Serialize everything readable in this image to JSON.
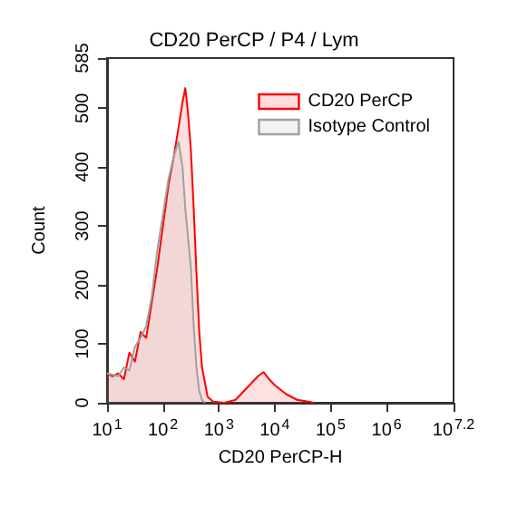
{
  "chart_data": {
    "type": "area",
    "title": "CD20 PerCP / P4 / Lym",
    "xlabel": "CD20 PerCP-H",
    "ylabel": "Count",
    "log": "x",
    "legend": "top right",
    "marker": "none",
    "grid": false,
    "xlim": [
      10,
      15848932
    ],
    "ylim": [
      0,
      585
    ],
    "xticks": [
      {
        "value": 10,
        "label": "10$^{1}$"
      },
      {
        "value": 100,
        "label": "10$^{2}$"
      },
      {
        "value": 1000,
        "label": "10$^{3}$"
      },
      {
        "value": 10000,
        "label": "10$^{4}$"
      },
      {
        "value": 100000,
        "label": "10$^{5}$"
      },
      {
        "value": 1000000,
        "label": "10$^{6}$"
      },
      {
        "value": 15848932,
        "label": "10$^{7.2}$"
      }
    ],
    "yticks": [
      0,
      100,
      200,
      300,
      400,
      500,
      585
    ],
    "series": [
      {
        "name": "CD20 PerCP",
        "color": "#ff0000",
        "x": [
          10,
          12.6,
          15.8,
          20,
          25.1,
          31.6,
          39.8,
          50.1,
          63.1,
          79.4,
          100,
          126,
          158,
          200,
          224,
          251,
          282,
          316,
          355,
          398,
          447,
          501,
          631,
          794,
          1259,
          1995,
          3162,
          5012,
          6310,
          7943,
          10000,
          15849,
          25119,
          39811,
          50119
        ],
        "values": [
          50,
          45,
          50,
          40,
          85,
          70,
          120,
          110,
          170,
          230,
          300,
          370,
          420,
          480,
          510,
          534,
          490,
          430,
          330,
          220,
          120,
          60,
          10,
          2,
          0,
          5,
          25,
          45,
          52,
          40,
          30,
          15,
          5,
          2,
          0
        ]
      },
      {
        "name": "Isotype Control",
        "color": "#a0a0a0",
        "x": [
          10,
          15.8,
          20,
          25.1,
          31.6,
          39.8,
          50.1,
          63.1,
          79.4,
          100,
          126,
          158,
          191,
          224,
          251,
          316,
          355,
          398,
          447,
          501,
          562
        ],
        "values": [
          50,
          45,
          60,
          55,
          95,
          110,
          130,
          180,
          260,
          320,
          380,
          420,
          443,
          400,
          330,
          230,
          130,
          60,
          20,
          5,
          0
        ]
      }
    ]
  }
}
